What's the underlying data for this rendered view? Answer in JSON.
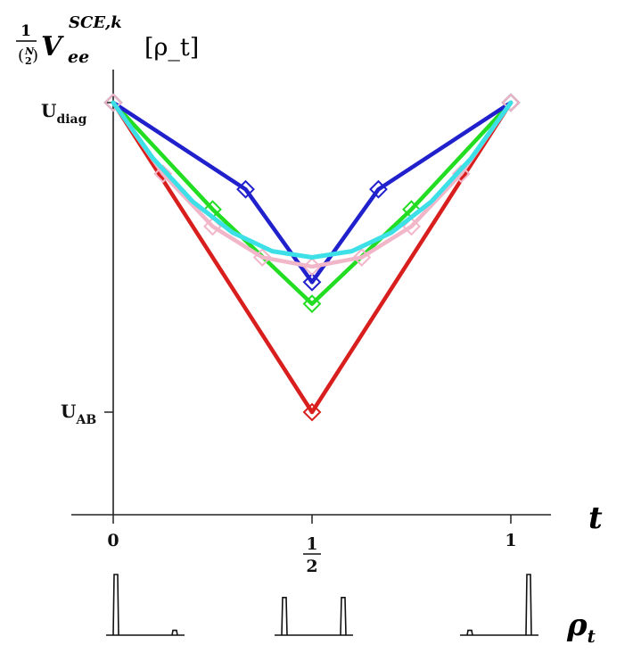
{
  "chart_data": {
    "type": "line",
    "title": "(1/(N choose 2)) V_ee^{SCE,k}[ρ_t]",
    "title_parts": {
      "frac_num": "1",
      "frac_den_top": "N",
      "frac_den_bottom": "2",
      "main": "V",
      "sub": "ee",
      "sup": "SCE,k",
      "arg": "[ρ_t]"
    },
    "xlabel": "t",
    "x_ticks": [
      {
        "value": 0,
        "label": "0"
      },
      {
        "value": 0.5,
        "label": "1/2",
        "numerator": "1",
        "denominator": "2"
      },
      {
        "value": 1,
        "label": "1"
      }
    ],
    "y_ticks": [
      {
        "value": 1,
        "main": "U",
        "sub": "diag"
      },
      {
        "value": 0,
        "main": "U",
        "sub": "AB"
      }
    ],
    "xlim": [
      0,
      1
    ],
    "ylim": [
      -0.33,
      1
    ],
    "grid": false,
    "series": [
      {
        "color": "#d91e1e",
        "marker": "diamond",
        "x": [
          0,
          0.5,
          1
        ],
        "y": [
          1,
          0,
          1
        ]
      },
      {
        "color": "#22dd22",
        "marker": "diamond",
        "x": [
          0,
          0.25,
          0.5,
          0.75,
          1
        ],
        "y": [
          1,
          0.655,
          0.35,
          0.655,
          1
        ]
      },
      {
        "color": "#2020cc",
        "marker": "diamond",
        "x": [
          0,
          0.333,
          0.5,
          0.667,
          1
        ],
        "y": [
          1,
          0.72,
          0.42,
          0.72,
          1
        ]
      },
      {
        "color": "#f2b6c9",
        "marker": "diamond",
        "x": [
          0,
          0.125,
          0.25,
          0.375,
          0.5,
          0.625,
          0.75,
          0.875,
          1
        ],
        "y": [
          1,
          0.77,
          0.6,
          0.5,
          0.47,
          0.5,
          0.6,
          0.77,
          1
        ]
      },
      {
        "color": "#3ee0e8",
        "marker": "none",
        "x": [
          0,
          0.1,
          0.2,
          0.3,
          0.4,
          0.5,
          0.6,
          0.7,
          0.8,
          0.9,
          1
        ],
        "y": [
          1,
          0.82,
          0.68,
          0.58,
          0.52,
          0.5,
          0.52,
          0.58,
          0.68,
          0.82,
          1
        ]
      }
    ],
    "density_insets": {
      "label": "ρ",
      "label_sub": "t",
      "panels": [
        {
          "t": 0,
          "left_peak": 1,
          "right_peak": 0.08
        },
        {
          "t": 0.5,
          "left_peak": 0.62,
          "right_peak": 0.62
        },
        {
          "t": 1,
          "left_peak": 0.08,
          "right_peak": 1
        }
      ]
    }
  }
}
